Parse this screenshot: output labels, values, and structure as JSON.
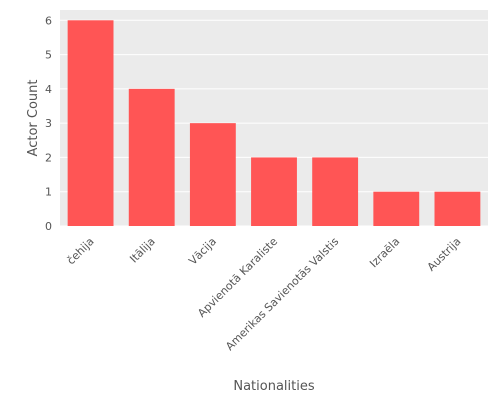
{
  "chart_data": {
    "type": "bar",
    "categories": [
      "čehija",
      "Itālija",
      "Vācija",
      "Apvienotā Karaliste",
      "Amerikas Savienotās Valstis",
      "Izraēla",
      "Austrija"
    ],
    "values": [
      6,
      4,
      3,
      2,
      2,
      1,
      1
    ],
    "xlabel": "Nationalities",
    "ylabel": "Actor Count",
    "ylim": [
      0,
      6.3
    ],
    "yticks": [
      "0",
      "1",
      "2",
      "3",
      "4",
      "5",
      "6"
    ],
    "grid": true,
    "bar_color": "#ff5555",
    "plot_background": "#ebebeb",
    "grid_color": "#ffffff"
  }
}
